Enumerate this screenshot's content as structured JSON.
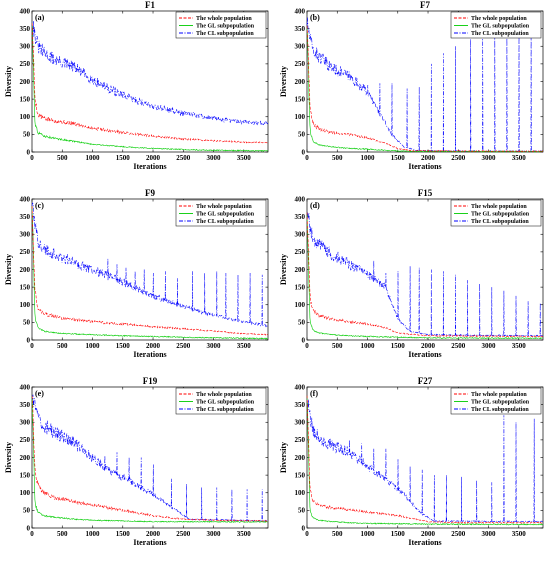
{
  "chart_data": [
    {
      "type": "line",
      "panel_tag": "(a)",
      "title": "F1",
      "xlabel": "Iterations",
      "ylabel": "Diversity",
      "xlim": [
        0,
        3900
      ],
      "ylim": [
        0,
        400
      ],
      "xticks": [
        0,
        500,
        1000,
        1500,
        2000,
        2500,
        3000,
        3500
      ],
      "yticks": [
        0,
        50,
        100,
        150,
        200,
        250,
        300,
        350,
        400
      ],
      "legend_position": "top-right",
      "series": [
        {
          "name": "The whole population",
          "color": "#ff0000",
          "style": "dashed",
          "x": [
            0,
            50,
            100,
            200,
            400,
            700,
            1000,
            1500,
            2000,
            2500,
            3000,
            3500,
            3900
          ],
          "y": [
            380,
            150,
            105,
            95,
            88,
            80,
            68,
            55,
            45,
            37,
            32,
            28,
            26
          ]
        },
        {
          "name": "The GL subpopulation",
          "color": "#00cc00",
          "style": "solid",
          "x": [
            0,
            50,
            100,
            200,
            400,
            700,
            1000,
            1500,
            2000,
            2500,
            3000,
            3500,
            3900
          ],
          "y": [
            380,
            80,
            55,
            45,
            38,
            30,
            22,
            15,
            10,
            7,
            5,
            4,
            3
          ]
        },
        {
          "name": "The CL subpopulation",
          "color": "#0000ff",
          "style": "dashdot",
          "x": [
            0,
            50,
            100,
            200,
            400,
            700,
            1000,
            1500,
            2000,
            2500,
            3000,
            3500,
            3900
          ],
          "y": [
            380,
            330,
            300,
            280,
            260,
            240,
            205,
            160,
            130,
            110,
            95,
            85,
            82
          ]
        }
      ]
    },
    {
      "type": "line",
      "panel_tag": "(b)",
      "title": "F7",
      "xlabel": "Iterations",
      "ylabel": "Diversity",
      "xlim": [
        0,
        3900
      ],
      "ylim": [
        0,
        400
      ],
      "xticks": [
        0,
        500,
        1000,
        1500,
        2000,
        2500,
        3000,
        3500
      ],
      "yticks": [
        0,
        50,
        100,
        150,
        200,
        250,
        300,
        350,
        400
      ],
      "legend_position": "top-right",
      "series": [
        {
          "name": "The whole population",
          "color": "#ff0000",
          "style": "dashed",
          "x": [
            0,
            50,
            100,
            200,
            400,
            700,
            1000,
            1300,
            1500,
            1700,
            2000,
            3900
          ],
          "y": [
            370,
            130,
            80,
            65,
            55,
            50,
            40,
            25,
            10,
            4,
            3,
            2
          ]
        },
        {
          "name": "The GL subpopulation",
          "color": "#00cc00",
          "style": "solid",
          "x": [
            0,
            50,
            100,
            200,
            400,
            700,
            1000,
            1300,
            1500,
            1700,
            3900
          ],
          "y": [
            370,
            60,
            30,
            20,
            15,
            10,
            8,
            5,
            3,
            2,
            1
          ]
        },
        {
          "name": "The CL subpopulation",
          "color": "#0000ff",
          "style": "dashdot",
          "x": [
            0,
            50,
            100,
            200,
            400,
            700,
            1000,
            1200,
            1400,
            1600,
            1800,
            2000,
            3900
          ],
          "y": [
            370,
            320,
            290,
            270,
            240,
            215,
            170,
            110,
            50,
            15,
            5,
            3,
            2
          ],
          "spikes": [
            [
              1000,
              190
            ],
            [
              1200,
              195
            ],
            [
              1400,
              195
            ],
            [
              1650,
              180
            ],
            [
              1850,
              185
            ],
            [
              2050,
              250
            ],
            [
              2250,
              280
            ],
            [
              2450,
              300
            ],
            [
              2700,
              320
            ],
            [
              2900,
              330
            ],
            [
              3100,
              340
            ],
            [
              3300,
              345
            ],
            [
              3500,
              350
            ],
            [
              3700,
              360
            ]
          ]
        }
      ]
    },
    {
      "type": "line",
      "panel_tag": "(c)",
      "title": "F9",
      "xlabel": "Iterations",
      "ylabel": "Diversity",
      "xlim": [
        0,
        3900
      ],
      "ylim": [
        0,
        400
      ],
      "xticks": [
        0,
        500,
        1000,
        1500,
        2000,
        2500,
        3000,
        3500
      ],
      "yticks": [
        0,
        50,
        100,
        150,
        200,
        250,
        300,
        350,
        400
      ],
      "legend_position": "top-right",
      "series": [
        {
          "name": "The whole population",
          "color": "#ff0000",
          "style": "dashed",
          "x": [
            0,
            50,
            100,
            200,
            400,
            700,
            1000,
            1500,
            2000,
            2500,
            3000,
            3500,
            3900
          ],
          "y": [
            390,
            140,
            90,
            75,
            65,
            58,
            52,
            45,
            38,
            32,
            25,
            18,
            15
          ]
        },
        {
          "name": "The GL subpopulation",
          "color": "#00cc00",
          "style": "solid",
          "x": [
            0,
            50,
            100,
            200,
            400,
            700,
            1000,
            1500,
            2000,
            2500,
            3000,
            3500,
            3900
          ],
          "y": [
            390,
            60,
            35,
            25,
            20,
            17,
            15,
            12,
            10,
            8,
            6,
            5,
            4
          ]
        },
        {
          "name": "The CL subpopulation",
          "color": "#0000ff",
          "style": "dashdot",
          "x": [
            0,
            50,
            100,
            200,
            400,
            700,
            1000,
            1500,
            2000,
            2500,
            3000,
            3500,
            3900
          ],
          "y": [
            390,
            320,
            280,
            260,
            240,
            220,
            200,
            165,
            125,
            95,
            70,
            52,
            40
          ],
          "spikes": [
            [
              1250,
              230
            ],
            [
              1400,
              215
            ],
            [
              1550,
              205
            ],
            [
              1700,
              195
            ],
            [
              1850,
              200
            ],
            [
              2000,
              190
            ],
            [
              2200,
              195
            ],
            [
              2400,
              175
            ],
            [
              2650,
              195
            ],
            [
              2850,
              190
            ],
            [
              3050,
              195
            ],
            [
              3200,
              190
            ],
            [
              3400,
              185
            ],
            [
              3600,
              190
            ],
            [
              3800,
              185
            ]
          ]
        }
      ]
    },
    {
      "type": "line",
      "panel_tag": "(d)",
      "title": "F15",
      "xlabel": "Iterations",
      "ylabel": "Diversity",
      "xlim": [
        0,
        3900
      ],
      "ylim": [
        0,
        400
      ],
      "xticks": [
        0,
        500,
        1000,
        1500,
        2000,
        2500,
        3000,
        3500
      ],
      "yticks": [
        0,
        50,
        100,
        150,
        200,
        250,
        300,
        350,
        400
      ],
      "legend_position": "top-right",
      "series": [
        {
          "name": "The whole population",
          "color": "#ff0000",
          "style": "dashed",
          "x": [
            0,
            50,
            100,
            200,
            400,
            700,
            1000,
            1300,
            1500,
            2000,
            3900
          ],
          "y": [
            370,
            120,
            85,
            70,
            60,
            52,
            45,
            35,
            20,
            12,
            10
          ]
        },
        {
          "name": "The GL subpopulation",
          "color": "#00cc00",
          "style": "solid",
          "x": [
            0,
            50,
            100,
            200,
            400,
            700,
            1000,
            1500,
            2000,
            3900
          ],
          "y": [
            370,
            50,
            28,
            20,
            15,
            12,
            10,
            8,
            6,
            5
          ]
        },
        {
          "name": "The CL subpopulation",
          "color": "#0000ff",
          "style": "dashdot",
          "x": [
            0,
            50,
            100,
            200,
            400,
            700,
            1000,
            1300,
            1500,
            1700,
            2000,
            3900
          ],
          "y": [
            370,
            320,
            290,
            270,
            245,
            215,
            185,
            150,
            60,
            25,
            15,
            12
          ],
          "spikes": [
            [
              1100,
              225
            ],
            [
              1300,
              190
            ],
            [
              1500,
              195
            ],
            [
              1700,
              210
            ],
            [
              1850,
              205
            ],
            [
              2050,
              200
            ],
            [
              2250,
              195
            ],
            [
              2450,
              185
            ],
            [
              2650,
              170
            ],
            [
              2850,
              160
            ],
            [
              3050,
              150
            ],
            [
              3250,
              140
            ],
            [
              3450,
              125
            ],
            [
              3650,
              110
            ],
            [
              3850,
              105
            ]
          ]
        }
      ]
    },
    {
      "type": "line",
      "panel_tag": "(e)",
      "title": "F19",
      "xlabel": "Iterations",
      "ylabel": "Diversity",
      "xlim": [
        0,
        3900
      ],
      "ylim": [
        0,
        400
      ],
      "xticks": [
        0,
        500,
        1000,
        1500,
        2000,
        2500,
        3000,
        3500
      ],
      "yticks": [
        0,
        50,
        100,
        150,
        200,
        250,
        300,
        350,
        400
      ],
      "legend_position": "top-right",
      "series": [
        {
          "name": "The whole population",
          "color": "#ff0000",
          "style": "dashed",
          "x": [
            0,
            50,
            100,
            200,
            400,
            700,
            1000,
            1500,
            2000,
            2500,
            3000,
            3900
          ],
          "y": [
            380,
            160,
            120,
            100,
            85,
            75,
            65,
            50,
            35,
            25,
            22,
            20
          ]
        },
        {
          "name": "The GL subpopulation",
          "color": "#00cc00",
          "style": "solid",
          "x": [
            0,
            50,
            100,
            200,
            400,
            700,
            1000,
            1500,
            2000,
            2500,
            3900
          ],
          "y": [
            380,
            70,
            45,
            35,
            30,
            25,
            22,
            20,
            18,
            18,
            17
          ]
        },
        {
          "name": "The CL subpopulation",
          "color": "#0000ff",
          "style": "dashdot",
          "x": [
            0,
            50,
            100,
            200,
            400,
            700,
            1000,
            1300,
            1600,
            2000,
            2300,
            2600,
            3900
          ],
          "y": [
            380,
            340,
            310,
            290,
            270,
            240,
            200,
            160,
            135,
            95,
            60,
            25,
            20
          ],
          "spikes": [
            [
              1000,
              210
            ],
            [
              1200,
              205
            ],
            [
              1400,
              215
            ],
            [
              1600,
              200
            ],
            [
              1800,
              200
            ],
            [
              2000,
              180
            ],
            [
              2300,
              140
            ],
            [
              2550,
              125
            ],
            [
              2800,
              115
            ],
            [
              3050,
              115
            ],
            [
              3300,
              110
            ],
            [
              3550,
              110
            ],
            [
              3800,
              110
            ]
          ]
        }
      ]
    },
    {
      "type": "line",
      "panel_tag": "(f)",
      "title": "F27",
      "xlabel": "Iterations",
      "ylabel": "Diversity",
      "xlim": [
        0,
        3900
      ],
      "ylim": [
        0,
        400
      ],
      "xticks": [
        0,
        500,
        1000,
        1500,
        2000,
        2500,
        3000,
        3500
      ],
      "yticks": [
        0,
        50,
        100,
        150,
        200,
        250,
        300,
        350,
        400
      ],
      "legend_position": "top-right",
      "series": [
        {
          "name": "The whole population",
          "color": "#ff0000",
          "style": "dashed",
          "x": [
            0,
            50,
            100,
            200,
            400,
            700,
            1000,
            1500,
            2000,
            2500,
            3000,
            3900
          ],
          "y": [
            380,
            110,
            75,
            65,
            58,
            52,
            45,
            35,
            18,
            15,
            15,
            15
          ]
        },
        {
          "name": "The GL subpopulation",
          "color": "#00cc00",
          "style": "solid",
          "x": [
            0,
            50,
            100,
            200,
            400,
            700,
            1000,
            1500,
            2000,
            3900
          ],
          "y": [
            380,
            50,
            28,
            22,
            18,
            15,
            13,
            12,
            11,
            10
          ]
        },
        {
          "name": "The CL subpopulation",
          "color": "#0000ff",
          "style": "dashdot",
          "x": [
            0,
            50,
            100,
            200,
            400,
            700,
            1000,
            1300,
            1600,
            1900,
            2100,
            3900
          ],
          "y": [
            380,
            320,
            280,
            255,
            235,
            215,
            175,
            140,
            95,
            40,
            20,
            18
          ],
          "spikes": [
            [
              700,
              250
            ],
            [
              900,
              240
            ],
            [
              1100,
              225
            ],
            [
              1300,
              225
            ],
            [
              1500,
              195
            ],
            [
              1700,
              175
            ],
            [
              1900,
              165
            ],
            [
              2100,
              150
            ],
            [
              2300,
              150
            ],
            [
              2550,
              145
            ],
            [
              2800,
              135
            ],
            [
              3050,
              130
            ],
            [
              3250,
              320
            ],
            [
              3450,
              300
            ],
            [
              3750,
              310
            ]
          ]
        }
      ]
    }
  ]
}
